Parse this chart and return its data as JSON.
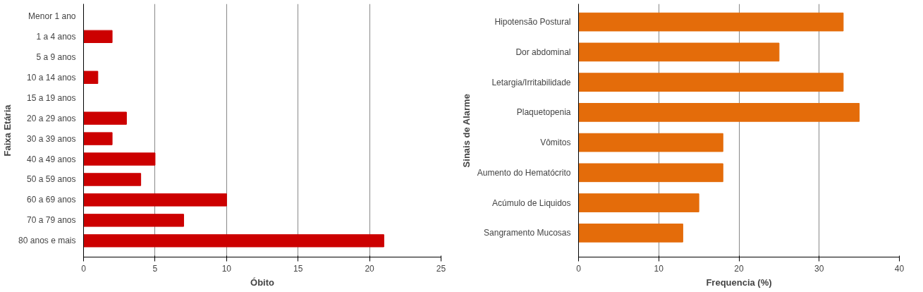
{
  "chart_data": [
    {
      "type": "bar",
      "orientation": "horizontal",
      "ylabel": "Faixa Etária",
      "xlabel": "Óbito",
      "categories": [
        "Menor 1 ano",
        "1 a 4 anos",
        "5 a 9 anos",
        "10 a 14 anos",
        "15 a 19 anos",
        "20 a 29 anos",
        "30 a 39 anos",
        "40 a 49 anos",
        "50 a 59 anos",
        "60 a 69 anos",
        "70 a 79 anos",
        "80 anos e mais"
      ],
      "series": [
        {
          "color": "#cc0000",
          "values": [
            0,
            2,
            0,
            1,
            0,
            3,
            2,
            5,
            4,
            10,
            7,
            21
          ]
        }
      ],
      "xlim": [
        0,
        25
      ],
      "xticks": [
        0,
        5,
        10,
        15,
        20,
        25
      ],
      "grid": "x"
    },
    {
      "type": "bar",
      "orientation": "horizontal",
      "ylabel": "Sinais de Alarme",
      "xlabel": "Frequencia (%)",
      "categories": [
        "Hipotensão Postural",
        "Dor abdominal",
        "Letargia/Irritabilidade",
        "Plaquetopenia",
        "Vômitos",
        "Aumento do Hematócrito",
        "Acúmulo de Liquidos",
        "Sangramento Mucosas"
      ],
      "series": [
        {
          "color": "#e46c0a",
          "values": [
            33,
            25,
            33,
            35,
            18,
            18,
            15,
            13
          ]
        }
      ],
      "xlim": [
        0,
        40
      ],
      "xticks": [
        0,
        10,
        20,
        30,
        40
      ],
      "grid": "x"
    }
  ]
}
